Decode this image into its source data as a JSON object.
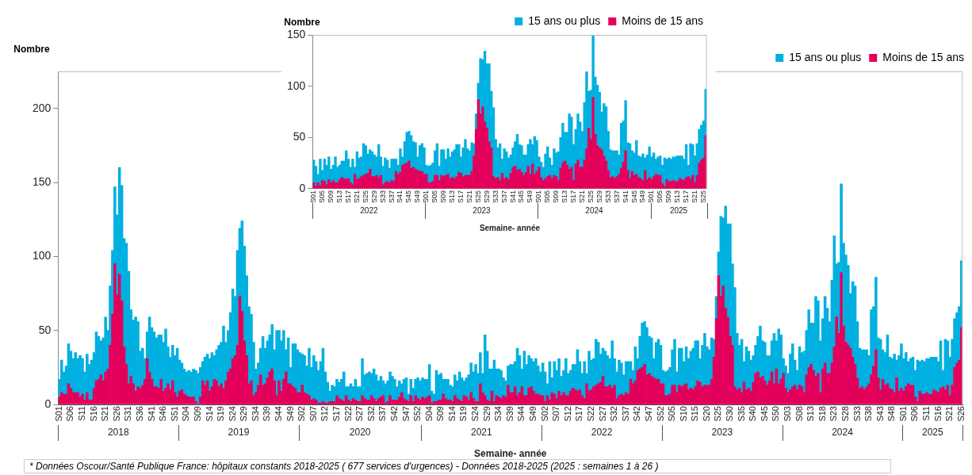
{
  "chart_data": [
    {
      "type": "bar",
      "stacked": true,
      "ylabel": "Nombre",
      "xlabel": "Semaine- année",
      "legend": "top right",
      "grid": false,
      "ylim": [
        0,
        225
      ],
      "yticks": [
        0,
        50,
        100,
        150,
        200
      ],
      "categories": [
        "S01",
        null,
        null,
        null,
        null,
        "S06",
        null,
        null,
        null,
        null,
        "S11",
        null,
        null,
        null,
        null,
        "S16",
        null,
        null,
        null,
        null,
        "S21",
        null,
        null,
        null,
        null,
        "S26",
        null,
        null,
        null,
        null,
        "S31",
        null,
        null,
        null,
        null,
        "S36",
        null,
        null,
        null,
        null,
        "S41",
        null,
        null,
        null,
        null,
        "S46",
        null,
        null,
        null,
        null,
        "S51",
        null,
        null,
        null,
        null,
        "S04",
        null,
        null,
        null,
        null,
        "S09",
        null,
        null,
        null,
        null,
        "S14",
        null,
        null,
        null,
        null,
        "S19",
        null,
        null,
        null,
        null,
        "S24",
        null,
        null,
        null,
        null,
        "S29",
        null,
        null,
        null,
        null,
        "S34",
        null,
        null,
        null,
        null,
        "S39",
        null,
        null,
        null,
        null,
        "S44",
        null,
        null,
        null,
        null,
        "S49",
        null,
        null,
        null,
        null,
        "S02",
        null,
        null,
        null,
        null,
        "S07",
        null,
        null,
        null,
        null,
        "S12",
        null,
        null,
        null,
        null,
        "S17",
        null,
        null,
        null,
        null,
        "S22",
        null,
        null,
        null,
        null,
        "S27",
        null,
        null,
        null,
        null,
        "S32",
        null,
        null,
        null,
        null,
        "S37",
        null,
        null,
        null,
        null,
        "S42",
        null,
        null,
        null,
        null,
        "S47",
        null,
        null,
        null,
        null,
        "S52",
        null,
        null,
        null,
        null,
        "S04",
        null,
        null,
        null,
        null,
        "S09",
        null,
        null,
        null,
        null,
        "S14",
        null,
        null,
        null,
        null,
        "S19",
        null,
        null,
        null,
        null,
        "S24",
        null,
        null,
        null,
        null,
        "S29",
        null,
        null,
        null,
        null,
        "S34",
        null,
        null,
        null,
        null,
        "S39",
        null,
        null,
        null,
        null,
        "S44",
        null,
        null,
        null,
        null,
        "S49",
        null,
        null,
        null,
        null,
        "S02",
        null,
        null,
        null,
        null,
        "S07",
        null,
        null,
        null,
        null,
        "S12",
        null,
        null,
        null,
        null,
        "S17",
        null,
        null,
        null,
        null,
        "S22",
        null,
        null,
        null,
        null,
        "S27",
        null,
        null,
        null,
        null,
        "S32",
        null,
        null,
        null,
        null,
        "S37",
        null,
        null,
        null,
        null,
        "S42",
        null,
        null,
        null,
        null,
        "S47",
        null,
        null,
        null,
        null,
        "S52",
        null,
        null,
        null,
        null,
        "S05",
        null,
        null,
        null,
        null,
        "S10",
        null,
        null,
        null,
        null,
        "S15",
        null,
        null,
        null,
        null,
        "S20",
        null,
        null,
        null,
        null,
        "S25",
        null,
        null,
        null,
        null,
        "S30",
        null,
        null,
        null,
        null,
        "S35",
        null,
        null,
        null,
        null,
        "S40",
        null,
        null,
        null,
        null,
        "S45",
        null,
        null,
        null,
        null,
        "S50",
        null,
        null,
        null,
        null,
        "S03",
        null,
        null,
        null,
        null,
        "S08",
        null,
        null,
        null,
        null,
        "S13",
        null,
        null,
        null,
        null,
        "S18",
        null,
        null,
        null,
        null,
        "S23",
        null,
        null,
        null,
        null,
        "S28",
        null,
        null,
        null,
        null,
        "S33",
        null,
        null,
        null,
        null,
        "S38",
        null,
        null,
        null,
        null,
        "S43",
        null,
        null,
        null,
        null,
        "S48",
        null,
        null,
        null,
        null,
        "S01",
        null,
        null,
        null,
        null,
        "S06",
        null,
        null,
        null,
        null,
        "S11",
        null,
        null,
        null,
        null,
        "S16",
        null,
        null,
        null,
        null,
        "S21",
        null,
        null,
        null,
        null,
        "S26"
      ],
      "series": [
        {
          "name": "Moins de 15 ans",
          "color": "#e3005b",
          "values": [
            5,
            8,
            7,
            7,
            14,
            11,
            8,
            8,
            8,
            5,
            7,
            3,
            8,
            3,
            3,
            11,
            16,
            17,
            20,
            16,
            22,
            24,
            40,
            61,
            95,
            74,
            88,
            70,
            39,
            27,
            14,
            19,
            14,
            9,
            12,
            11,
            13,
            17,
            31,
            22,
            17,
            12,
            12,
            11,
            17,
            9,
            11,
            14,
            10,
            16,
            8,
            5,
            9,
            10,
            7,
            6,
            5,
            5,
            5,
            2,
            0,
            5,
            16,
            13,
            16,
            9,
            12,
            17,
            16,
            12,
            14,
            11,
            16,
            22,
            24,
            31,
            33,
            40,
            73,
            63,
            43,
            33,
            14,
            16,
            6,
            8,
            13,
            20,
            13,
            14,
            18,
            22,
            24,
            16,
            6,
            16,
            9,
            17,
            22,
            14,
            14,
            12,
            11,
            8,
            8,
            13,
            8,
            7,
            6,
            3,
            4,
            3,
            1,
            1,
            2,
            1,
            1,
            2,
            2,
            2,
            6,
            4,
            3,
            2,
            6,
            3,
            2,
            4,
            3,
            2,
            2,
            6,
            4,
            3,
            3,
            6,
            4,
            2,
            4,
            5,
            6,
            1,
            2,
            6,
            3,
            3,
            3,
            5,
            8,
            4,
            3,
            2,
            6,
            2,
            6,
            4,
            3,
            5,
            4,
            5,
            6,
            1,
            2,
            2,
            3,
            3,
            7,
            4,
            3,
            3,
            2,
            6,
            4,
            3,
            2,
            6,
            5,
            3,
            8,
            4,
            2,
            2,
            14,
            8,
            6,
            3,
            2,
            9,
            2,
            6,
            5,
            4,
            6,
            5,
            13,
            8,
            8,
            12,
            6,
            8,
            12,
            6,
            6,
            11,
            12,
            9,
            7,
            7,
            6,
            6,
            2,
            6,
            3,
            8,
            7,
            4,
            9,
            6,
            8,
            6,
            6,
            9,
            11,
            10,
            9,
            10,
            6,
            4,
            14,
            9,
            10,
            12,
            13,
            14,
            15,
            19,
            12,
            12,
            13,
            11,
            13,
            4,
            6,
            7,
            6,
            8,
            7,
            17,
            14,
            16,
            23,
            24,
            25,
            27,
            20,
            21,
            19,
            18,
            17,
            17,
            14,
            14,
            6,
            6,
            7,
            13,
            13,
            8,
            13,
            12,
            13,
            14,
            10,
            11,
            10,
            12,
            16,
            15,
            12,
            13,
            13,
            13,
            17,
            32,
            58,
            87,
            73,
            80,
            65,
            59,
            46,
            40,
            12,
            10,
            11,
            8,
            15,
            10,
            11,
            9,
            15,
            21,
            22,
            18,
            19,
            16,
            13,
            16,
            22,
            14,
            24,
            14,
            17,
            21,
            11,
            8,
            10,
            12,
            13,
            10,
            13,
            12,
            8,
            20,
            25,
            27,
            23,
            19,
            21,
            8,
            24,
            28,
            21,
            21,
            28,
            39,
            59,
            48,
            89,
            53,
            42,
            40,
            38,
            32,
            27,
            18,
            11,
            12,
            10,
            12,
            14,
            20,
            26,
            37,
            18,
            10,
            17,
            13,
            14,
            11,
            10,
            8,
            18,
            9,
            11,
            9,
            12,
            14,
            13,
            13,
            5,
            2,
            9,
            7,
            7,
            8,
            7,
            7,
            10,
            9,
            8,
            11,
            12,
            10,
            13,
            6,
            13,
            25,
            28,
            30,
            52
          ]
        },
        {
          "name": "15 ans ou plus",
          "color": "#00b0e0",
          "values": [
            12,
            22,
            15,
            19,
            27,
            25,
            23,
            27,
            23,
            28,
            24,
            19,
            26,
            24,
            27,
            24,
            33,
            29,
            23,
            29,
            37,
            26,
            40,
            43,
            52,
            54,
            72,
            78,
            73,
            82,
            76,
            45,
            43,
            50,
            44,
            25,
            25,
            14,
            18,
            37,
            35,
            37,
            33,
            36,
            30,
            33,
            40,
            25,
            22,
            24,
            25,
            33,
            21,
            18,
            17,
            16,
            18,
            17,
            19,
            21,
            21,
            20,
            13,
            19,
            18,
            22,
            23,
            16,
            21,
            28,
            28,
            42,
            26,
            28,
            38,
            47,
            40,
            64,
            46,
            61,
            64,
            54,
            52,
            45,
            36,
            16,
            15,
            18,
            33,
            24,
            25,
            25,
            30,
            21,
            44,
            34,
            34,
            33,
            15,
            31,
            11,
            29,
            30,
            29,
            27,
            21,
            25,
            19,
            32,
            22,
            29,
            26,
            22,
            28,
            36,
            21,
            14,
            7,
            11,
            10,
            11,
            11,
            14,
            20,
            6,
            9,
            12,
            8,
            14,
            10,
            10,
            25,
            16,
            18,
            19,
            15,
            20,
            18,
            12,
            14,
            10,
            13,
            14,
            16,
            16,
            14,
            9,
            11,
            6,
            13,
            15,
            5,
            11,
            9,
            11,
            14,
            13,
            13,
            13,
            12,
            21,
            8,
            5,
            21,
            17,
            18,
            10,
            13,
            14,
            10,
            10,
            14,
            12,
            19,
            16,
            10,
            13,
            17,
            20,
            18,
            25,
            19,
            21,
            13,
            41,
            33,
            22,
            15,
            28,
            18,
            19,
            19,
            12,
            11,
            13,
            19,
            19,
            17,
            32,
            25,
            12,
            30,
            21,
            22,
            19,
            20,
            24,
            19,
            16,
            22,
            20,
            8,
            26,
            10,
            22,
            19,
            22,
            13,
            15,
            25,
            15,
            14,
            16,
            17,
            28,
            19,
            15,
            25,
            7,
            27,
            20,
            19,
            31,
            28,
            19,
            19,
            24,
            21,
            18,
            32,
            18,
            18,
            24,
            21,
            14,
            21,
            22,
            12,
            9,
            23,
            8,
            22,
            30,
            29,
            32,
            25,
            26,
            13,
            25,
            27,
            26,
            9,
            16,
            17,
            18,
            24,
            31,
            14,
            25,
            26,
            16,
            25,
            21,
            25,
            28,
            31,
            27,
            16,
            28,
            35,
            26,
            24,
            28,
            12,
            15,
            16,
            54,
            46,
            69,
            63,
            76,
            55,
            67,
            38,
            29,
            36,
            14,
            29,
            25,
            21,
            18,
            19,
            24,
            35,
            24,
            26,
            20,
            17,
            21,
            34,
            19,
            37,
            30,
            10,
            15,
            13,
            24,
            29,
            17,
            13,
            26,
            23,
            28,
            30,
            39,
            28,
            32,
            54,
            49,
            35,
            34,
            45,
            44,
            35,
            56,
            75,
            36,
            48,
            60,
            56,
            59,
            54,
            37,
            51,
            53,
            38,
            27,
            25,
            27,
            25,
            19,
            44,
            40,
            49,
            27,
            34,
            20,
            22,
            33,
            21,
            21,
            26,
            12,
            24,
            30,
            22,
            23,
            15,
            18,
            19,
            18,
            28,
            20,
            23,
            22,
            23,
            24,
            25,
            22,
            23,
            21,
            32,
            11,
            34,
            30,
            26,
            31,
            33,
            34,
            36,
            45
          ]
        }
      ],
      "annotations": [
        "2018",
        "2019",
        "2020",
        "2021",
        "2022",
        "2023",
        "2024",
        "2025",
        "* Données Oscour/Santé Publique France: hôpitaux constants 2018-2025 ( 677 services d'urgences) - Données 2018-2025 (2025  : semaines 1 à 26 )"
      ]
    },
    {
      "type": "bar",
      "stacked": true,
      "ylabel": "Nombre",
      "xlabel": "Semaine- année",
      "legend": "top right",
      "grid": false,
      "ylim": [
        0,
        150
      ],
      "yticks": [
        0,
        50,
        100,
        150
      ],
      "categories": [
        "S01",
        null,
        null,
        null,
        "S05",
        null,
        null,
        null,
        "S09",
        null,
        null,
        null,
        "S13",
        null,
        null,
        null,
        "S17",
        null,
        null,
        null,
        "S21",
        null,
        null,
        null,
        "S25",
        null,
        null,
        null,
        "S29",
        null,
        null,
        null,
        "S33",
        null,
        null,
        null,
        "S37",
        null,
        null,
        null,
        "S41",
        null,
        null,
        null,
        "S45",
        null,
        null,
        null,
        "S49",
        null,
        null,
        null,
        "S01",
        null,
        null,
        null,
        "S05",
        null,
        null,
        null,
        "S09",
        null,
        null,
        null,
        "S13",
        null,
        null,
        null,
        "S17",
        null,
        null,
        null,
        "S21",
        null,
        null,
        null,
        "S25",
        null,
        null,
        null,
        "S29",
        null,
        null,
        null,
        "S33",
        null,
        null,
        null,
        "S37",
        null,
        null,
        null,
        "S41",
        null,
        null,
        null,
        "S45",
        null,
        null,
        null,
        "S49",
        null,
        null,
        null,
        "S01",
        null,
        null,
        null,
        "S05",
        null,
        null,
        null,
        "S09",
        null,
        null,
        null,
        "S13",
        null,
        null,
        null,
        "S17",
        null,
        null,
        null,
        "S21",
        null,
        null,
        null,
        "S25",
        null,
        null,
        null,
        "S29",
        null,
        null,
        null,
        "S33",
        null,
        null,
        null,
        "S37",
        null,
        null,
        null,
        "S41",
        null,
        null,
        null,
        "S45",
        null,
        null,
        null,
        "S49",
        null,
        null,
        null,
        "S01",
        null,
        null,
        null,
        "S05",
        null,
        null,
        null,
        "S09",
        null,
        null,
        null,
        "S13",
        null,
        null,
        null,
        "S17",
        null,
        null,
        null,
        "S21",
        null,
        null,
        null,
        "S25",
        null
      ],
      "series": [
        {
          "name": "Moins de 15 ans",
          "color": "#e3005b",
          "values": [
            6,
            2,
            6,
            3,
            8,
            7,
            4,
            9,
            6,
            8,
            6,
            6,
            9,
            11,
            10,
            9,
            10,
            6,
            4,
            14,
            9,
            10,
            12,
            13,
            14,
            15,
            19,
            12,
            12,
            13,
            11,
            13,
            4,
            6,
            7,
            6,
            8,
            7,
            17,
            14,
            16,
            23,
            24,
            25,
            27,
            20,
            21,
            19,
            18,
            17,
            17,
            14,
            14,
            6,
            6,
            7,
            13,
            13,
            8,
            13,
            12,
            13,
            14,
            10,
            11,
            10,
            12,
            16,
            15,
            12,
            13,
            13,
            13,
            17,
            32,
            58,
            87,
            73,
            80,
            65,
            59,
            46,
            40,
            12,
            10,
            11,
            8,
            15,
            10,
            11,
            9,
            15,
            21,
            22,
            18,
            19,
            16,
            13,
            16,
            22,
            14,
            24,
            14,
            17,
            21,
            11,
            8,
            10,
            12,
            13,
            10,
            13,
            12,
            8,
            20,
            25,
            27,
            23,
            19,
            21,
            8,
            24,
            28,
            21,
            21,
            28,
            39,
            59,
            48,
            89,
            53,
            42,
            40,
            38,
            32,
            27,
            18,
            11,
            12,
            10,
            12,
            14,
            20,
            26,
            37,
            18,
            10,
            17,
            13,
            14,
            11,
            10,
            8,
            18,
            9,
            11,
            9,
            12,
            14,
            13,
            13,
            5,
            2,
            9,
            7,
            7,
            8,
            7,
            7,
            10,
            9,
            8,
            11,
            12,
            10,
            13,
            6,
            13,
            25,
            28,
            30,
            52
          ]
        },
        {
          "name": "15 ans ou plus",
          "color": "#00b0e0",
          "values": [
            22,
            20,
            8,
            26,
            10,
            22,
            19,
            22,
            13,
            15,
            25,
            15,
            14,
            16,
            17,
            28,
            19,
            15,
            25,
            7,
            27,
            20,
            19,
            31,
            28,
            19,
            19,
            24,
            21,
            18,
            32,
            18,
            18,
            24,
            21,
            14,
            21,
            22,
            12,
            9,
            23,
            8,
            22,
            30,
            29,
            32,
            25,
            26,
            13,
            25,
            27,
            26,
            9,
            16,
            17,
            18,
            24,
            31,
            14,
            25,
            26,
            16,
            25,
            21,
            25,
            28,
            31,
            27,
            16,
            28,
            35,
            26,
            24,
            28,
            12,
            15,
            16,
            54,
            46,
            69,
            63,
            76,
            55,
            67,
            38,
            29,
            36,
            14,
            29,
            25,
            21,
            18,
            19,
            24,
            35,
            24,
            26,
            20,
            17,
            21,
            34,
            19,
            37,
            30,
            10,
            15,
            13,
            24,
            29,
            17,
            13,
            26,
            23,
            28,
            30,
            39,
            28,
            32,
            54,
            49,
            35,
            34,
            45,
            44,
            35,
            56,
            75,
            36,
            48,
            60,
            56,
            59,
            54,
            37,
            51,
            53,
            38,
            27,
            25,
            27,
            25,
            19,
            44,
            40,
            49,
            27,
            34,
            20,
            22,
            33,
            21,
            21,
            26,
            12,
            24,
            30,
            22,
            23,
            15,
            18,
            19,
            18,
            28,
            20,
            23,
            22,
            23,
            24,
            25,
            22,
            23,
            21,
            32,
            11,
            34,
            30,
            26,
            31,
            33,
            34,
            36,
            45
          ]
        }
      ],
      "annotations": [
        "2022",
        "2023",
        "2024",
        "2025"
      ]
    }
  ]
}
